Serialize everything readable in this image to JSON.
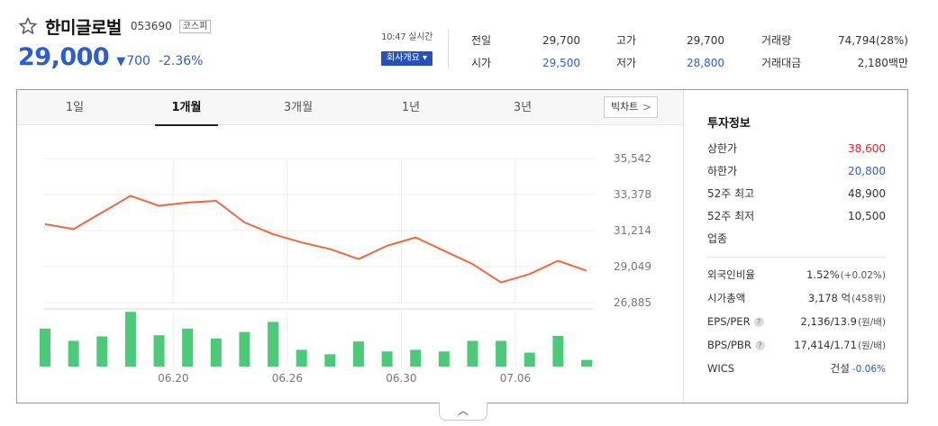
{
  "header": {
    "name": "한미글로벌",
    "code": "053690",
    "market": "코스피",
    "price": "29,000",
    "change": "700",
    "change_pct": "-2.36%",
    "realtime": "10:47 실시간",
    "company_button": "회사개요 ▾"
  },
  "summary": [
    {
      "label": "전일",
      "value": "29,700",
      "tone": "normal"
    },
    {
      "label": "고가",
      "value": "29,700",
      "tone": "normal"
    },
    {
      "label": "거래량",
      "value": "74,794(28%)",
      "tone": "normal"
    },
    {
      "label": "시가",
      "value": "29,500",
      "tone": "blue"
    },
    {
      "label": "저가",
      "value": "28,800",
      "tone": "blue"
    },
    {
      "label": "거래대금",
      "value": "2,180백만",
      "tone": "normal"
    }
  ],
  "tabs": [
    {
      "label": "1일",
      "active": false
    },
    {
      "label": "1개월",
      "active": true
    },
    {
      "label": "3개월",
      "active": false
    },
    {
      "label": "1년",
      "active": false
    },
    {
      "label": "3년",
      "active": false
    }
  ],
  "big_chart_label": "빅차트",
  "chart_data": {
    "type": "line",
    "price_series": [
      31600,
      31300,
      32300,
      33300,
      32700,
      32900,
      33000,
      31700,
      31000,
      30500,
      30100,
      29500,
      30300,
      30800,
      30000,
      29200,
      28100,
      28600,
      29400,
      28800
    ],
    "volume_series": [
      0.68,
      0.46,
      0.54,
      0.98,
      0.56,
      0.68,
      0.5,
      0.62,
      0.8,
      0.3,
      0.22,
      0.45,
      0.27,
      0.3,
      0.27,
      0.46,
      0.46,
      0.25,
      0.55,
      0.12
    ],
    "y_ticks": [
      "35,542",
      "33,378",
      "31,214",
      "29,049",
      "26,885"
    ],
    "ylim": [
      26885,
      35542
    ],
    "x_ticks": [
      "06.20",
      "06.26",
      "06.30",
      "07.06"
    ],
    "x_tick_index": [
      4.5,
      8.5,
      12.5,
      16.5
    ],
    "line_color": "#f2673d",
    "bar_color": "#4dc97a",
    "grid": true
  },
  "info": {
    "title": "투자정보",
    "rows": [
      {
        "label": "상한가",
        "value": "38,600",
        "tone": "red"
      },
      {
        "label": "하한가",
        "value": "20,800",
        "tone": "blue"
      },
      {
        "label": "52주 최고",
        "value": "48,900",
        "tone": "normal"
      },
      {
        "label": "52주 최저",
        "value": "10,500",
        "tone": "normal"
      },
      {
        "label": "업종",
        "value": "",
        "tone": "normal"
      }
    ],
    "rows2": [
      {
        "label": "외국인비율",
        "value": "1.52%",
        "sub": "(+0.02%)",
        "help": false
      },
      {
        "label": "시가총액",
        "value": "3,178 억",
        "sub": "(458위)",
        "help": false
      },
      {
        "label": "EPS/PER",
        "value": "2,136/13.9",
        "sub": "(원/배)",
        "help": true
      },
      {
        "label": "BPS/PBR",
        "value": "17,414/1.71",
        "sub": "(원/배)",
        "help": true
      },
      {
        "label": "WICS",
        "value": "건설",
        "sub": "-0.06%",
        "help": false
      }
    ]
  },
  "colors": {
    "accent_blue": "#2c5ed1",
    "down_red": "#d9252b",
    "button_blue": "#2751b8"
  }
}
